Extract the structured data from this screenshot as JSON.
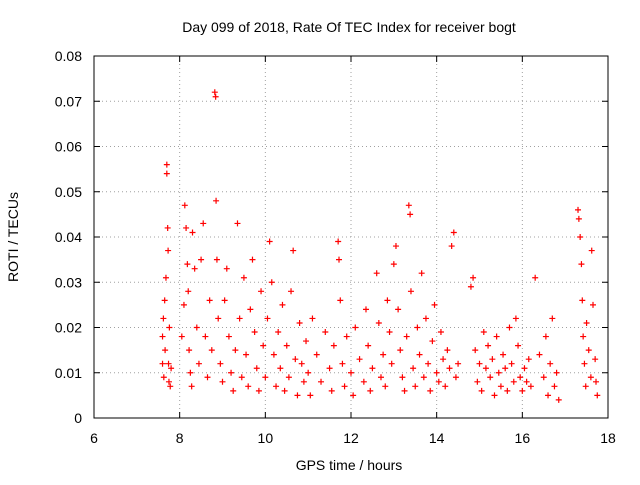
{
  "chart_data": {
    "type": "scatter",
    "title": "Day 099 of 2018, Rate Of TEC Index for receiver bogt",
    "xlabel": "GPS time / hours",
    "ylabel": "ROTI / TECUs",
    "xlim": [
      6,
      18
    ],
    "ylim": [
      0,
      0.08
    ],
    "xticks": [
      6,
      8,
      10,
      12,
      14,
      16,
      18
    ],
    "xtick_labels": [
      "6",
      "8",
      "10",
      "12",
      "14",
      "16",
      "18"
    ],
    "yticks": [
      0,
      0.01,
      0.02,
      0.03,
      0.04,
      0.05,
      0.06,
      0.07,
      0.08
    ],
    "ytick_labels": [
      "0",
      "0.01",
      "0.02",
      "0.03",
      "0.04",
      "0.05",
      "0.06",
      "0.07",
      "0.08"
    ],
    "grid": true,
    "marker": "+",
    "marker_color": "#ff0000",
    "series": [
      {
        "name": "ROTI",
        "points": [
          [
            7.6,
            0.012
          ],
          [
            7.6,
            0.018
          ],
          [
            7.62,
            0.022
          ],
          [
            7.63,
            0.009
          ],
          [
            7.65,
            0.026
          ],
          [
            7.66,
            0.015
          ],
          [
            7.68,
            0.031
          ],
          [
            7.7,
            0.056
          ],
          [
            7.7,
            0.054
          ],
          [
            7.72,
            0.042
          ],
          [
            7.73,
            0.037
          ],
          [
            7.74,
            0.012
          ],
          [
            7.75,
            0.008
          ],
          [
            7.76,
            0.02
          ],
          [
            7.78,
            0.007
          ],
          [
            7.8,
            0.011
          ],
          [
            8.05,
            0.018
          ],
          [
            8.1,
            0.025
          ],
          [
            8.12,
            0.047
          ],
          [
            8.15,
            0.042
          ],
          [
            8.18,
            0.034
          ],
          [
            8.2,
            0.028
          ],
          [
            8.22,
            0.015
          ],
          [
            8.25,
            0.01
          ],
          [
            8.28,
            0.007
          ],
          [
            8.3,
            0.041
          ],
          [
            8.35,
            0.033
          ],
          [
            8.4,
            0.02
          ],
          [
            8.45,
            0.012
          ],
          [
            8.5,
            0.035
          ],
          [
            8.55,
            0.043
          ],
          [
            8.6,
            0.018
          ],
          [
            8.65,
            0.009
          ],
          [
            8.7,
            0.026
          ],
          [
            8.75,
            0.015
          ],
          [
            8.82,
            0.072
          ],
          [
            8.84,
            0.071
          ],
          [
            8.85,
            0.048
          ],
          [
            8.87,
            0.035
          ],
          [
            8.9,
            0.022
          ],
          [
            8.95,
            0.012
          ],
          [
            9.0,
            0.008
          ],
          [
            9.05,
            0.026
          ],
          [
            9.1,
            0.033
          ],
          [
            9.15,
            0.018
          ],
          [
            9.2,
            0.01
          ],
          [
            9.25,
            0.006
          ],
          [
            9.3,
            0.015
          ],
          [
            9.35,
            0.043
          ],
          [
            9.4,
            0.022
          ],
          [
            9.45,
            0.009
          ],
          [
            9.5,
            0.031
          ],
          [
            9.55,
            0.014
          ],
          [
            9.6,
            0.007
          ],
          [
            9.65,
            0.024
          ],
          [
            9.7,
            0.035
          ],
          [
            9.75,
            0.019
          ],
          [
            9.8,
            0.011
          ],
          [
            9.85,
            0.006
          ],
          [
            9.9,
            0.028
          ],
          [
            9.95,
            0.016
          ],
          [
            10.0,
            0.009
          ],
          [
            10.05,
            0.022
          ],
          [
            10.1,
            0.039
          ],
          [
            10.15,
            0.03
          ],
          [
            10.2,
            0.014
          ],
          [
            10.25,
            0.007
          ],
          [
            10.3,
            0.019
          ],
          [
            10.35,
            0.011
          ],
          [
            10.4,
            0.025
          ],
          [
            10.45,
            0.006
          ],
          [
            10.5,
            0.016
          ],
          [
            10.55,
            0.009
          ],
          [
            10.6,
            0.028
          ],
          [
            10.65,
            0.037
          ],
          [
            10.7,
            0.013
          ],
          [
            10.75,
            0.005
          ],
          [
            10.8,
            0.021
          ],
          [
            10.85,
            0.012
          ],
          [
            10.9,
            0.008
          ],
          [
            10.95,
            0.017
          ],
          [
            11.0,
            0.01
          ],
          [
            11.05,
            0.005
          ],
          [
            11.1,
            0.022
          ],
          [
            11.2,
            0.014
          ],
          [
            11.3,
            0.008
          ],
          [
            11.4,
            0.019
          ],
          [
            11.5,
            0.011
          ],
          [
            11.55,
            0.006
          ],
          [
            11.6,
            0.016
          ],
          [
            11.7,
            0.039
          ],
          [
            11.72,
            0.035
          ],
          [
            11.75,
            0.026
          ],
          [
            11.8,
            0.012
          ],
          [
            11.85,
            0.007
          ],
          [
            11.9,
            0.018
          ],
          [
            12.0,
            0.01
          ],
          [
            12.05,
            0.005
          ],
          [
            12.1,
            0.02
          ],
          [
            12.2,
            0.013
          ],
          [
            12.3,
            0.008
          ],
          [
            12.35,
            0.024
          ],
          [
            12.4,
            0.016
          ],
          [
            12.45,
            0.006
          ],
          [
            12.5,
            0.011
          ],
          [
            12.6,
            0.032
          ],
          [
            12.65,
            0.021
          ],
          [
            12.7,
            0.009
          ],
          [
            12.75,
            0.014
          ],
          [
            12.8,
            0.007
          ],
          [
            12.85,
            0.026
          ],
          [
            12.9,
            0.019
          ],
          [
            12.95,
            0.012
          ],
          [
            13.0,
            0.034
          ],
          [
            13.05,
            0.038
          ],
          [
            13.1,
            0.024
          ],
          [
            13.15,
            0.015
          ],
          [
            13.2,
            0.009
          ],
          [
            13.25,
            0.006
          ],
          [
            13.3,
            0.018
          ],
          [
            13.35,
            0.047
          ],
          [
            13.38,
            0.045
          ],
          [
            13.4,
            0.028
          ],
          [
            13.45,
            0.011
          ],
          [
            13.5,
            0.007
          ],
          [
            13.55,
            0.02
          ],
          [
            13.6,
            0.014
          ],
          [
            13.65,
            0.032
          ],
          [
            13.7,
            0.009
          ],
          [
            13.75,
            0.022
          ],
          [
            13.8,
            0.012
          ],
          [
            13.85,
            0.006
          ],
          [
            13.9,
            0.017
          ],
          [
            13.95,
            0.025
          ],
          [
            14.0,
            0.01
          ],
          [
            14.05,
            0.008
          ],
          [
            14.1,
            0.019
          ],
          [
            14.15,
            0.013
          ],
          [
            14.2,
            0.007
          ],
          [
            14.25,
            0.015
          ],
          [
            14.3,
            0.011
          ],
          [
            14.35,
            0.038
          ],
          [
            14.4,
            0.041
          ],
          [
            14.45,
            0.009
          ],
          [
            14.5,
            0.012
          ],
          [
            14.8,
            0.029
          ],
          [
            14.85,
            0.031
          ],
          [
            14.9,
            0.015
          ],
          [
            14.95,
            0.008
          ],
          [
            15.0,
            0.012
          ],
          [
            15.05,
            0.006
          ],
          [
            15.1,
            0.019
          ],
          [
            15.15,
            0.011
          ],
          [
            15.2,
            0.016
          ],
          [
            15.25,
            0.009
          ],
          [
            15.3,
            0.013
          ],
          [
            15.35,
            0.005
          ],
          [
            15.4,
            0.018
          ],
          [
            15.45,
            0.01
          ],
          [
            15.5,
            0.007
          ],
          [
            15.55,
            0.014
          ],
          [
            15.6,
            0.011
          ],
          [
            15.65,
            0.006
          ],
          [
            15.7,
            0.02
          ],
          [
            15.75,
            0.012
          ],
          [
            15.8,
            0.008
          ],
          [
            15.85,
            0.022
          ],
          [
            15.9,
            0.016
          ],
          [
            15.95,
            0.009
          ],
          [
            16.0,
            0.006
          ],
          [
            16.05,
            0.011
          ],
          [
            16.1,
            0.008
          ],
          [
            16.15,
            0.013
          ],
          [
            16.2,
            0.007
          ],
          [
            16.3,
            0.031
          ],
          [
            16.4,
            0.014
          ],
          [
            16.5,
            0.009
          ],
          [
            16.55,
            0.018
          ],
          [
            16.6,
            0.005
          ],
          [
            16.65,
            0.012
          ],
          [
            16.7,
            0.022
          ],
          [
            16.75,
            0.007
          ],
          [
            16.8,
            0.01
          ],
          [
            16.85,
            0.004
          ],
          [
            17.3,
            0.046
          ],
          [
            17.32,
            0.044
          ],
          [
            17.35,
            0.04
          ],
          [
            17.38,
            0.034
          ],
          [
            17.4,
            0.026
          ],
          [
            17.42,
            0.018
          ],
          [
            17.45,
            0.012
          ],
          [
            17.48,
            0.007
          ],
          [
            17.5,
            0.021
          ],
          [
            17.55,
            0.015
          ],
          [
            17.6,
            0.009
          ],
          [
            17.62,
            0.037
          ],
          [
            17.65,
            0.025
          ],
          [
            17.7,
            0.013
          ],
          [
            17.72,
            0.008
          ],
          [
            17.75,
            0.005
          ]
        ]
      }
    ]
  }
}
